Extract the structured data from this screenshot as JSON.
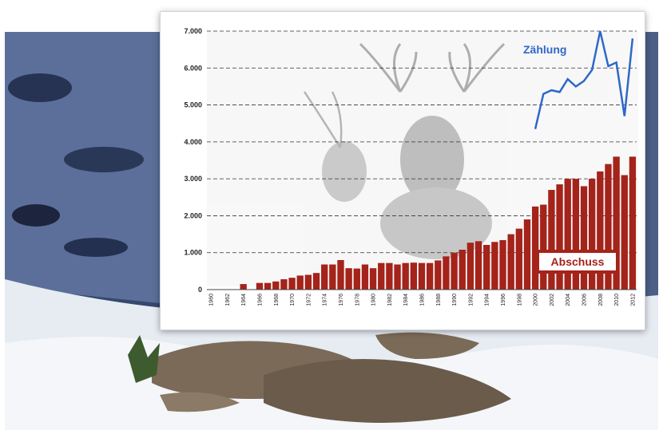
{
  "chart_data": {
    "type": "bar",
    "ylim": [
      0,
      7000
    ],
    "yticks": [
      "0",
      "1.000",
      "2.000",
      "3.000",
      "4.000",
      "5.000",
      "6.000",
      "7.000"
    ],
    "ytick_values": [
      0,
      1000,
      2000,
      3000,
      4000,
      5000,
      6000,
      7000
    ],
    "x_tick_labels": [
      "1960",
      "1962",
      "1964",
      "1966",
      "1968",
      "1970",
      "1972",
      "1974",
      "1976",
      "1978",
      "1980",
      "1982",
      "1984",
      "1986",
      "1988",
      "1990",
      "1992",
      "1994",
      "1996",
      "1998",
      "2000",
      "2002",
      "2004",
      "2006",
      "2008",
      "2010",
      "2012"
    ],
    "grid": "horizontal dashed",
    "series": [
      {
        "name": "Abschuss",
        "type": "bar",
        "color": "#a4231a",
        "x": [
          1964,
          1966,
          1967,
          1968,
          1969,
          1970,
          1971,
          1972,
          1973,
          1974,
          1975,
          1976,
          1977,
          1978,
          1979,
          1980,
          1981,
          1982,
          1983,
          1984,
          1985,
          1986,
          1987,
          1988,
          1989,
          1990,
          1991,
          1992,
          1993,
          1994,
          1995,
          1996,
          1997,
          1998,
          1999,
          2000,
          2001,
          2002,
          2003,
          2004,
          2005,
          2006,
          2007,
          2008,
          2009,
          2010,
          2011,
          2012
        ],
        "values": [
          150,
          180,
          180,
          220,
          280,
          320,
          380,
          400,
          450,
          680,
          680,
          800,
          580,
          570,
          680,
          580,
          720,
          720,
          680,
          720,
          730,
          720,
          720,
          790,
          900,
          1000,
          1080,
          1270,
          1310,
          1210,
          1290,
          1340,
          1500,
          1650,
          1900,
          2250,
          2300,
          2700,
          2850,
          3000,
          3000,
          2800,
          3000,
          3200,
          3400,
          3600,
          3100,
          3600
        ]
      },
      {
        "name": "Zählung",
        "type": "line",
        "color": "#2e68c8",
        "x": [
          2000,
          2001,
          2002,
          2003,
          2004,
          2005,
          2006,
          2007,
          2008,
          2009,
          2010,
          2011,
          2012
        ],
        "values": [
          4350,
          5300,
          5400,
          5350,
          5700,
          5500,
          5650,
          5950,
          7000,
          6050,
          6150,
          4700,
          6800
        ]
      }
    ]
  }
}
